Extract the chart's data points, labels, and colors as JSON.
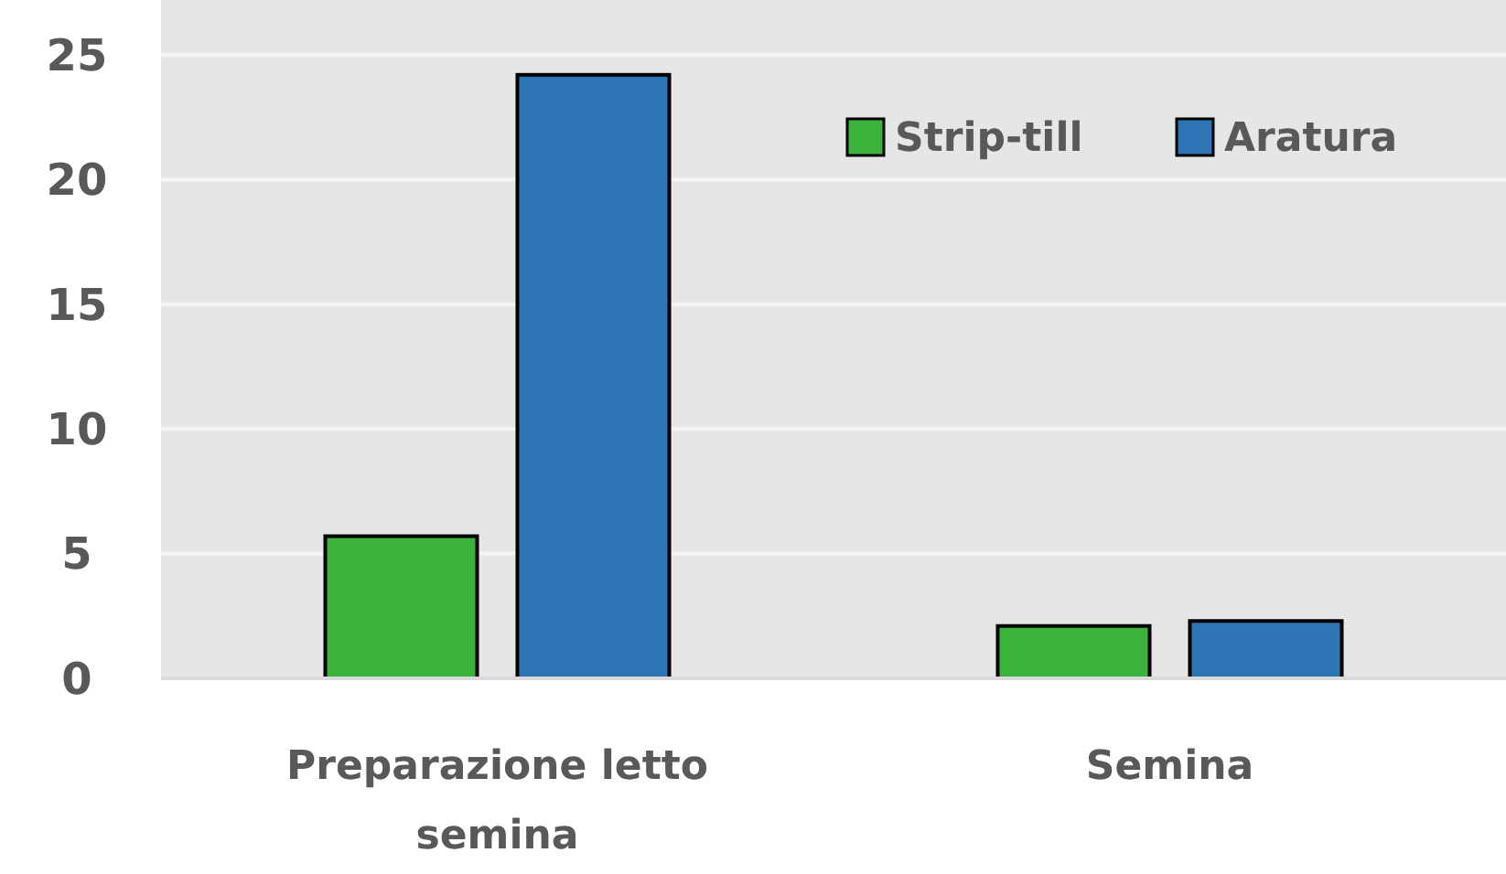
{
  "chart_data": {
    "type": "bar",
    "categories": [
      "Preparazione letto semina",
      "Semina"
    ],
    "series": [
      {
        "name": "Strip-till",
        "color": "#3cb43c",
        "values": [
          5.7,
          2.1
        ]
      },
      {
        "name": "Aratura",
        "color": "#2e75b6",
        "values": [
          24.2,
          2.3
        ]
      }
    ],
    "ylim": [
      0,
      25
    ],
    "yticks": [
      0,
      5,
      10,
      15,
      20,
      25
    ],
    "grid": "y",
    "legend": "top right"
  }
}
